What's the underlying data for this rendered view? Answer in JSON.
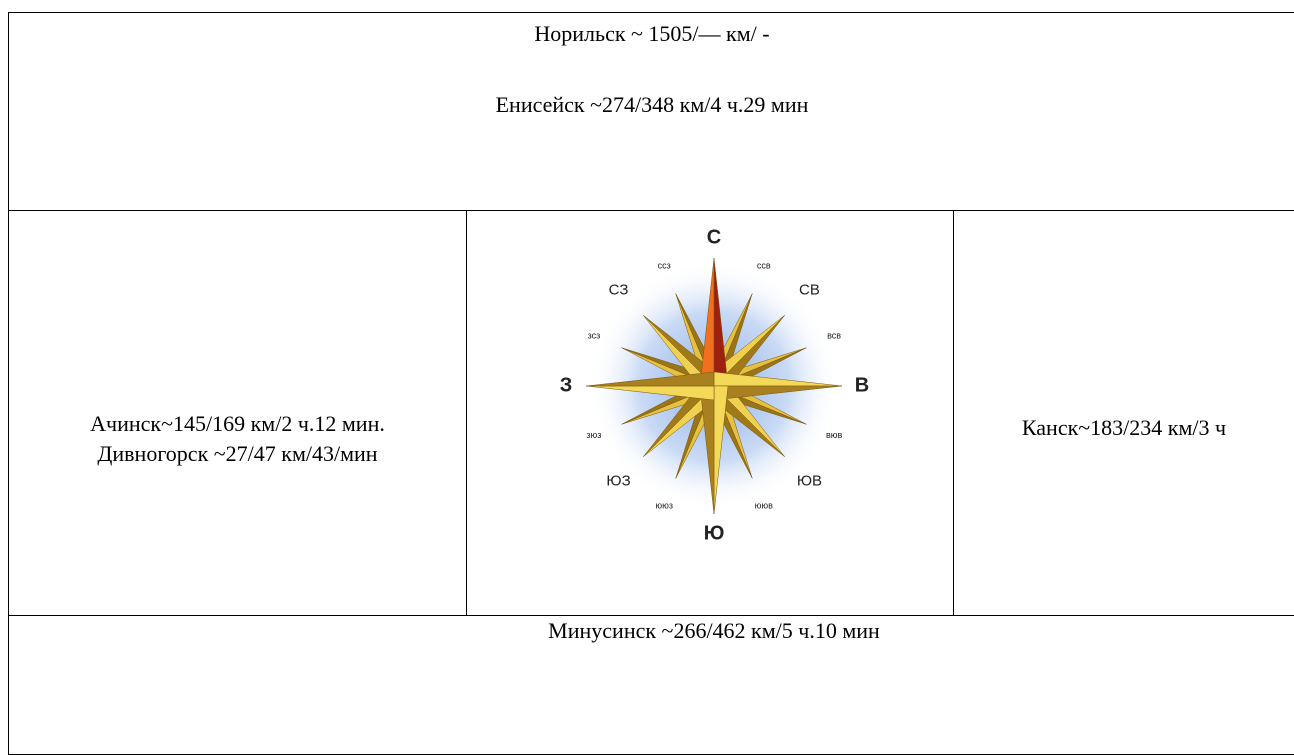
{
  "table": {
    "top": [
      "Норильск ~ 1505/— км/ -",
      "Енисейск ~274/348 км/4 ч.29 мин"
    ],
    "left": [
      "Ачинск~145/169 км/2 ч.12 мин.",
      "Дивногорск ~27/47 км/43/мин"
    ],
    "compass": {
      "main": [
        "С",
        "В",
        "Ю",
        "З"
      ],
      "intercardinal": [
        "СВ",
        "ЮВ",
        "ЮЗ",
        "СЗ"
      ],
      "minor": [
        "ссв",
        "всв",
        "вюв",
        "ююв",
        "ююз",
        "зюз",
        "зсз",
        "ссз"
      ]
    },
    "right": "Канск~183/234 км/3 ч",
    "bottom": "Минусинск ~266/462 км/5 ч.10 мин"
  }
}
